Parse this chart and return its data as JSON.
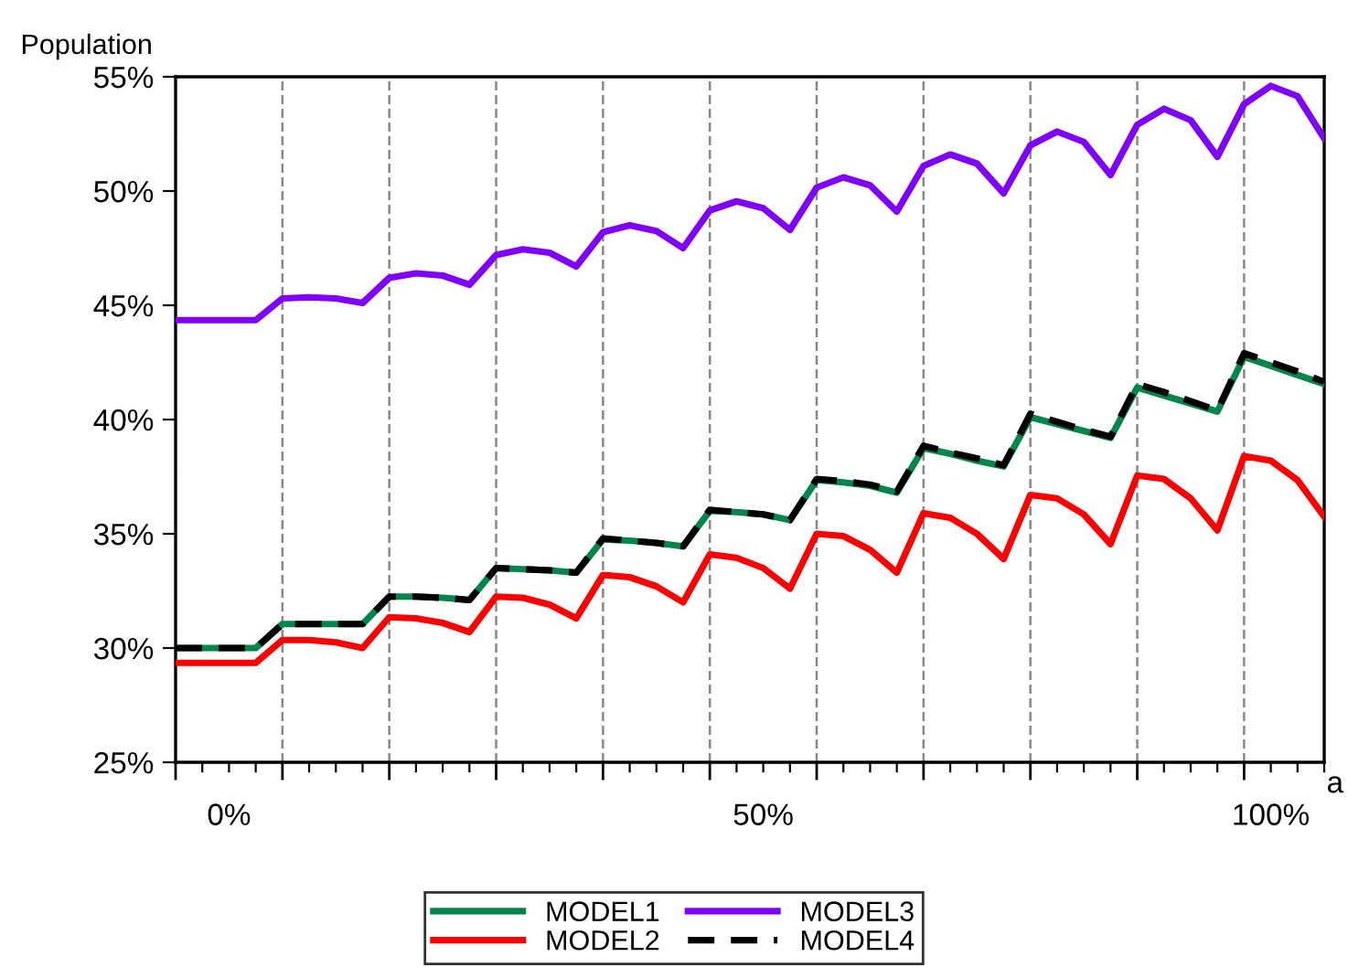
{
  "chart_data": {
    "type": "line",
    "ylabel": "Population",
    "xlabel": "a",
    "categories": [
      null,
      null,
      "0%",
      null,
      null,
      null,
      null,
      null,
      null,
      null,
      null,
      null,
      null,
      null,
      null,
      null,
      null,
      null,
      null,
      null,
      null,
      null,
      "50%",
      null,
      null,
      null,
      null,
      null,
      null,
      null,
      null,
      null,
      null,
      null,
      null,
      null,
      null,
      null,
      null,
      null,
      null,
      "100%",
      null,
      null
    ],
    "series": [
      {
        "name": "MODEL1",
        "color": "#00864b",
        "line_style": "solid",
        "values": [
          30.0,
          30.0,
          30.0,
          30.0,
          31.05,
          31.05,
          31.05,
          31.05,
          32.25,
          32.25,
          32.2,
          32.1,
          33.5,
          33.45,
          33.4,
          33.3,
          34.75,
          34.7,
          34.6,
          34.45,
          36.0,
          35.95,
          35.85,
          35.6,
          37.35,
          37.25,
          37.1,
          36.8,
          38.75,
          38.5,
          38.2,
          37.95,
          40.1,
          39.8,
          39.5,
          39.2,
          41.4,
          41.05,
          40.7,
          40.35,
          42.75,
          42.35,
          41.95,
          41.55
        ]
      },
      {
        "name": "MODEL2",
        "color": "#ff0000",
        "line_style": "solid",
        "values": [
          29.35,
          29.35,
          29.35,
          29.35,
          30.35,
          30.35,
          30.25,
          30.0,
          31.35,
          31.3,
          31.1,
          30.7,
          32.25,
          32.2,
          31.9,
          31.3,
          33.2,
          33.1,
          32.7,
          32.0,
          34.1,
          33.95,
          33.5,
          32.6,
          35.0,
          34.9,
          34.3,
          33.3,
          35.9,
          35.7,
          35.0,
          33.9,
          36.7,
          36.55,
          35.85,
          34.55,
          37.55,
          37.4,
          36.55,
          35.15,
          38.4,
          38.2,
          37.35,
          35.75
        ]
      },
      {
        "name": "MODEL3",
        "color": "#8000ff",
        "line_style": "solid",
        "values": [
          44.35,
          44.35,
          44.35,
          44.35,
          45.3,
          45.35,
          45.3,
          45.1,
          46.2,
          46.4,
          46.3,
          45.9,
          47.2,
          47.45,
          47.3,
          46.7,
          48.2,
          48.5,
          48.25,
          47.5,
          49.15,
          49.55,
          49.25,
          48.3,
          50.15,
          50.6,
          50.25,
          49.1,
          51.1,
          51.6,
          51.2,
          49.9,
          52.0,
          52.6,
          52.15,
          50.7,
          52.9,
          53.6,
          53.1,
          51.5,
          53.8,
          54.6,
          54.15,
          52.3
        ]
      },
      {
        "name": "MODEL4",
        "color": "#000000",
        "line_style": "dashed",
        "values": [
          30.0,
          30.0,
          30.0,
          30.0,
          31.05,
          31.05,
          31.05,
          31.05,
          32.25,
          32.25,
          32.2,
          32.1,
          33.5,
          33.45,
          33.4,
          33.3,
          34.8,
          34.7,
          34.6,
          34.45,
          36.05,
          35.95,
          35.85,
          35.6,
          37.4,
          37.3,
          37.15,
          36.85,
          38.85,
          38.55,
          38.3,
          38.0,
          40.25,
          39.9,
          39.55,
          39.25,
          41.55,
          41.2,
          40.8,
          40.4,
          42.9,
          42.5,
          42.1,
          41.65
        ]
      }
    ],
    "ylim": [
      25,
      55
    ],
    "yticks": [
      {
        "value": 25,
        "label": "25%"
      },
      {
        "value": 30,
        "label": "30%"
      },
      {
        "value": 35,
        "label": "35%"
      },
      {
        "value": 40,
        "label": "40%"
      },
      {
        "value": 45,
        "label": "45%"
      },
      {
        "value": 50,
        "label": "50%"
      },
      {
        "value": 55,
        "label": "55%"
      }
    ],
    "grid": "x",
    "legend": "bottom"
  }
}
